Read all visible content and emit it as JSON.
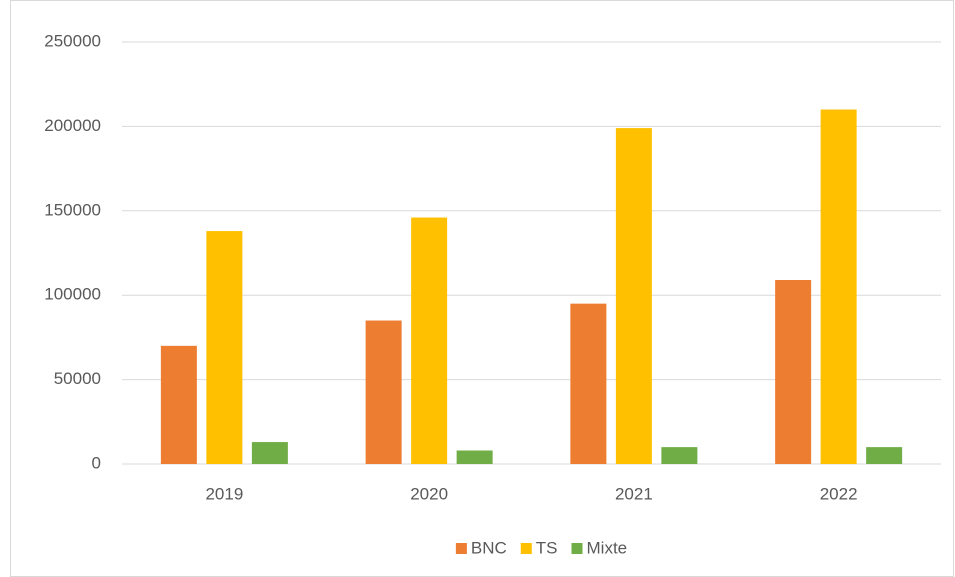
{
  "chart_data": {
    "type": "bar",
    "categories": [
      "2019",
      "2020",
      "2021",
      "2022"
    ],
    "series": [
      {
        "name": "BNC",
        "color": "#ed7d31",
        "values": [
          70000,
          85000,
          95000,
          109000
        ]
      },
      {
        "name": "TS",
        "color": "#ffc000",
        "values": [
          138000,
          146000,
          199000,
          210000
        ]
      },
      {
        "name": "Mixte",
        "color": "#70ad47",
        "values": [
          13000,
          8000,
          10000,
          10000
        ]
      }
    ],
    "ylim": [
      0,
      250000
    ],
    "yticks": [
      0,
      50000,
      100000,
      150000,
      200000,
      250000
    ],
    "grid": true,
    "legend": "bottom"
  }
}
